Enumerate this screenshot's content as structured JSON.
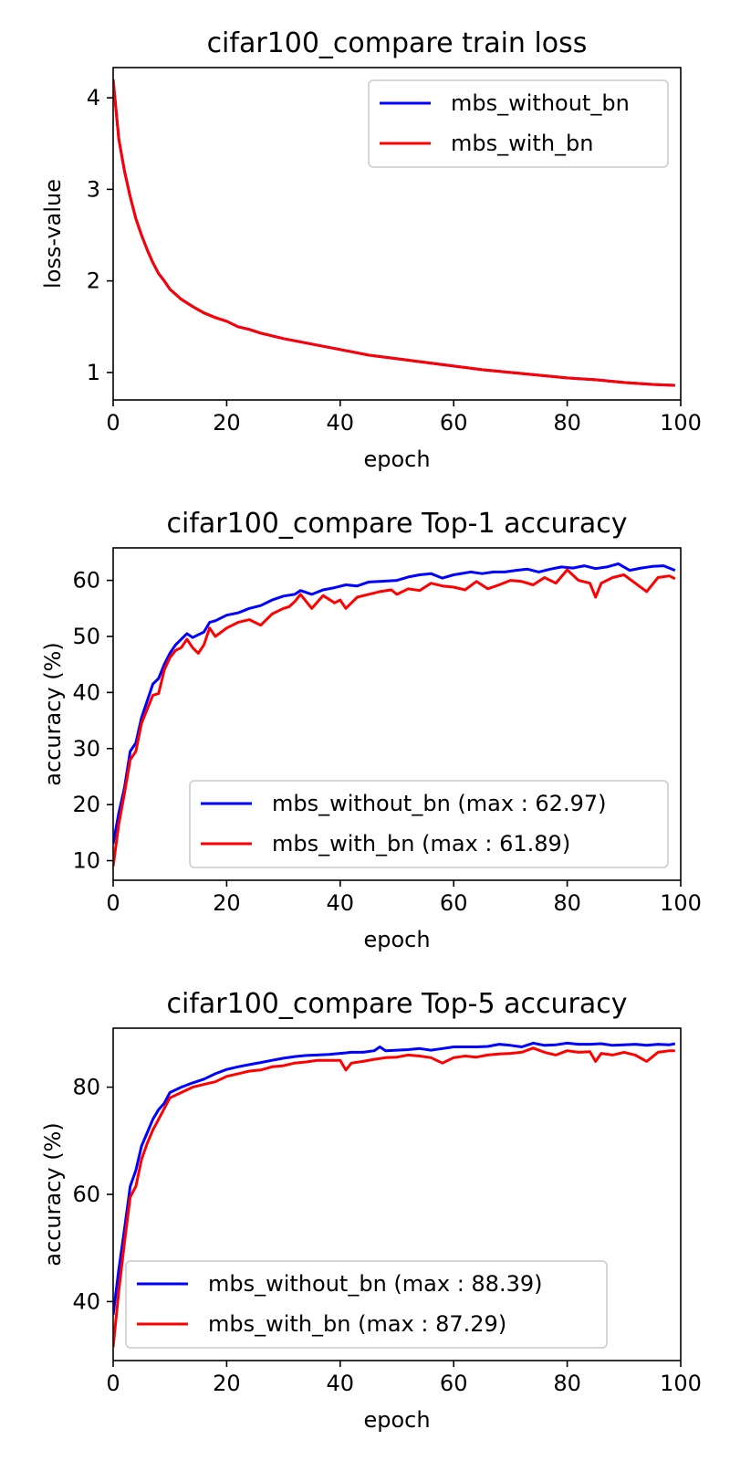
{
  "chart_data": [
    {
      "type": "line",
      "title": "cifar100_compare train loss",
      "xlabel": "epoch",
      "ylabel": "loss-value",
      "xlim": [
        0,
        100
      ],
      "ylim": [
        0.7,
        4.33
      ],
      "xticks": [
        0,
        20,
        40,
        60,
        80,
        100
      ],
      "yticks": [
        1,
        2,
        3,
        4
      ],
      "legend_position": "top-right",
      "series": [
        {
          "name": "mbs_without_bn",
          "color": "#0000ff",
          "x": [
            0,
            1,
            2,
            3,
            4,
            5,
            6,
            7,
            8,
            9,
            10,
            12,
            14,
            16,
            18,
            20,
            22,
            24,
            26,
            28,
            30,
            35,
            40,
            45,
            50,
            55,
            60,
            65,
            70,
            75,
            80,
            85,
            90,
            95,
            99
          ],
          "y": [
            4.2,
            3.55,
            3.2,
            2.92,
            2.68,
            2.5,
            2.34,
            2.2,
            2.08,
            2.0,
            1.91,
            1.8,
            1.72,
            1.65,
            1.6,
            1.56,
            1.5,
            1.47,
            1.43,
            1.4,
            1.37,
            1.31,
            1.25,
            1.19,
            1.15,
            1.11,
            1.07,
            1.03,
            1.0,
            0.97,
            0.94,
            0.92,
            0.89,
            0.87,
            0.86
          ]
        },
        {
          "name": "mbs_with_bn",
          "color": "#ff0000",
          "x": [
            0,
            1,
            2,
            3,
            4,
            5,
            6,
            7,
            8,
            9,
            10,
            12,
            14,
            16,
            18,
            20,
            22,
            24,
            26,
            28,
            30,
            35,
            40,
            45,
            50,
            55,
            60,
            65,
            70,
            75,
            80,
            85,
            90,
            95,
            99
          ],
          "y": [
            4.2,
            3.55,
            3.2,
            2.92,
            2.68,
            2.5,
            2.34,
            2.2,
            2.08,
            2.0,
            1.91,
            1.8,
            1.72,
            1.65,
            1.6,
            1.56,
            1.5,
            1.47,
            1.43,
            1.4,
            1.37,
            1.31,
            1.25,
            1.19,
            1.15,
            1.11,
            1.07,
            1.03,
            1.0,
            0.97,
            0.94,
            0.92,
            0.89,
            0.87,
            0.86
          ]
        }
      ]
    },
    {
      "type": "line",
      "title": "cifar100_compare Top-1 accuracy",
      "xlabel": "epoch",
      "ylabel": "accuracy (%)",
      "xlim": [
        0,
        100
      ],
      "ylim": [
        6.5,
        65.8
      ],
      "xticks": [
        0,
        20,
        40,
        60,
        80,
        100
      ],
      "yticks": [
        10,
        20,
        30,
        40,
        50,
        60
      ],
      "legend_position": "bottom-right",
      "series": [
        {
          "name": "mbs_without_bn (max : 62.97)",
          "color": "#0000ff",
          "x": [
            0,
            1,
            2,
            3,
            4,
            5,
            6,
            7,
            8,
            9,
            10,
            11,
            12,
            13,
            14,
            16,
            17,
            18,
            20,
            22,
            24,
            26,
            28,
            30,
            32,
            33,
            35,
            37,
            39,
            41,
            43,
            45,
            47,
            50,
            52,
            54,
            56,
            58,
            60,
            63,
            65,
            67,
            69,
            71,
            73,
            75,
            77,
            79,
            81,
            83,
            85,
            87,
            89,
            91,
            93,
            95,
            97,
            99
          ],
          "y": [
            13,
            18.5,
            23,
            29.5,
            31,
            35.5,
            38.5,
            41.5,
            42.5,
            45,
            47,
            48.5,
            49.5,
            50.5,
            49.8,
            50.8,
            52.5,
            52.8,
            53.8,
            54.2,
            55,
            55.5,
            56.5,
            57.2,
            57.5,
            58.2,
            57.5,
            58.3,
            58.7,
            59.2,
            59,
            59.7,
            59.8,
            60,
            60.6,
            61,
            61.2,
            60.4,
            61,
            61.5,
            61.2,
            61.5,
            61.5,
            61.8,
            62,
            61.5,
            62,
            62.4,
            62.2,
            62.6,
            62.1,
            62.4,
            62.97,
            61.8,
            62.2,
            62.5,
            62.6,
            61.8
          ]
        },
        {
          "name": "mbs_with_bn (max : 61.89)",
          "color": "#ff0000",
          "x": [
            0,
            1,
            2,
            3,
            4,
            5,
            6,
            7,
            8,
            9,
            10,
            11,
            12,
            13,
            14,
            15,
            16,
            17,
            18,
            20,
            22,
            24,
            26,
            28,
            30,
            31,
            32,
            33,
            35,
            37,
            39,
            40,
            41,
            43,
            45,
            47,
            49,
            50,
            52,
            54,
            56,
            58,
            60,
            62,
            64,
            66,
            68,
            70,
            72,
            74,
            76,
            78,
            80,
            82,
            84,
            85,
            86,
            88,
            90,
            92,
            94,
            96,
            98,
            99
          ],
          "y": [
            9,
            16.5,
            22,
            28,
            29.5,
            34.5,
            37,
            39.5,
            39.8,
            44,
            46.2,
            47.5,
            48,
            49.5,
            48,
            47,
            48.5,
            51.5,
            50,
            51.5,
            52.5,
            53,
            52,
            54,
            55,
            55.3,
            56.2,
            57.5,
            55,
            57.3,
            56,
            56.5,
            55,
            57,
            57.5,
            58,
            58.3,
            57.5,
            58.5,
            58.2,
            59.5,
            59,
            58.8,
            58.3,
            59.8,
            58.5,
            59.2,
            60,
            59.8,
            59.2,
            60.5,
            59.5,
            61.89,
            60,
            59.5,
            57,
            59.5,
            60.5,
            61,
            59.5,
            58,
            60.5,
            60.8,
            60.3
          ]
        }
      ]
    },
    {
      "type": "line",
      "title": "cifar100_compare Top-5 accuracy",
      "xlabel": "epoch",
      "ylabel": "accuracy (%)",
      "xlim": [
        0,
        100
      ],
      "ylim": [
        29,
        91
      ],
      "xticks": [
        0,
        20,
        40,
        60,
        80,
        100
      ],
      "yticks": [
        40,
        60,
        80
      ],
      "legend_position": "bottom-left",
      "series": [
        {
          "name": "mbs_without_bn (max : 88.39)",
          "color": "#0000ff",
          "x": [
            0,
            1,
            2,
            3,
            4,
            5,
            6,
            7,
            8,
            9,
            10,
            12,
            14,
            16,
            18,
            20,
            22,
            24,
            26,
            28,
            30,
            32,
            34,
            36,
            38,
            40,
            42,
            44,
            46,
            47,
            48,
            50,
            52,
            54,
            56,
            58,
            60,
            62,
            64,
            66,
            68,
            70,
            72,
            74,
            76,
            78,
            80,
            82,
            84,
            86,
            88,
            90,
            92,
            94,
            96,
            98,
            99
          ],
          "y": [
            37.5,
            46,
            53.5,
            61.5,
            64.5,
            69,
            71.5,
            74,
            75.8,
            77,
            79,
            80,
            80.8,
            81.5,
            82.5,
            83.3,
            83.8,
            84.2,
            84.6,
            85,
            85.4,
            85.7,
            85.9,
            86,
            86.1,
            86.3,
            86.5,
            86.5,
            86.8,
            87.5,
            86.8,
            86.9,
            87,
            87.2,
            86.9,
            87.2,
            87.5,
            87.5,
            87.5,
            87.6,
            88,
            87.8,
            87.5,
            88.2,
            87.8,
            87.9,
            88.2,
            88,
            88,
            88.1,
            87.8,
            87.9,
            88,
            87.8,
            88,
            87.9,
            88.1
          ]
        },
        {
          "name": "mbs_with_bn (max : 87.29)",
          "color": "#ff0000",
          "x": [
            0,
            1,
            2,
            3,
            4,
            5,
            6,
            7,
            8,
            9,
            10,
            12,
            14,
            16,
            18,
            20,
            22,
            24,
            26,
            28,
            30,
            32,
            34,
            36,
            38,
            40,
            41,
            42,
            44,
            46,
            48,
            50,
            52,
            54,
            56,
            58,
            60,
            62,
            64,
            66,
            68,
            70,
            72,
            74,
            76,
            78,
            80,
            82,
            84,
            85,
            86,
            88,
            90,
            92,
            94,
            96,
            98,
            99
          ],
          "y": [
            31.5,
            42,
            51,
            59.5,
            61.5,
            66.5,
            69.5,
            72,
            74,
            76,
            78,
            79,
            80,
            80.5,
            81,
            82,
            82.5,
            83,
            83.2,
            83.8,
            84,
            84.5,
            84.7,
            85,
            85,
            85,
            83.2,
            84.5,
            84.8,
            85.2,
            85.5,
            85.6,
            86,
            85.8,
            85.5,
            84.5,
            85.5,
            85.8,
            85.6,
            86,
            86.2,
            86.3,
            86.5,
            87.29,
            86.5,
            86,
            86.8,
            86.5,
            86.6,
            84.8,
            86.3,
            86,
            86.5,
            86,
            84.8,
            86.5,
            86.8,
            86.8
          ]
        }
      ]
    }
  ]
}
